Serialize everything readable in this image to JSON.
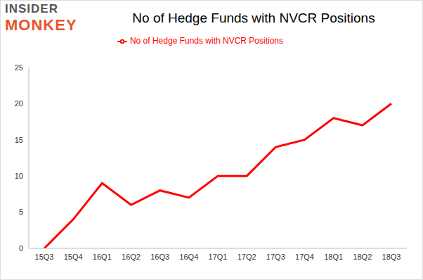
{
  "chart_data": {
    "type": "line",
    "title": "No of Hedge Funds with NVCR Positions",
    "annotations": [
      "INSIDER",
      "MONKEY"
    ],
    "categories": [
      "15Q3",
      "15Q4",
      "16Q1",
      "16Q2",
      "16Q3",
      "16Q4",
      "17Q1",
      "17Q2",
      "17Q3",
      "17Q4",
      "18Q1",
      "18Q2",
      "18Q3"
    ],
    "series": [
      {
        "name": "No of Hedge Funds with NVCR Positions",
        "color": "#ff0000",
        "values": [
          0,
          4,
          9,
          6,
          8,
          7,
          10,
          10,
          14,
          15,
          18,
          17,
          20
        ]
      }
    ],
    "ylim": [
      0,
      25
    ],
    "yticks": [
      0,
      5,
      10,
      15,
      20,
      25
    ],
    "grid": false,
    "legend": "top"
  }
}
